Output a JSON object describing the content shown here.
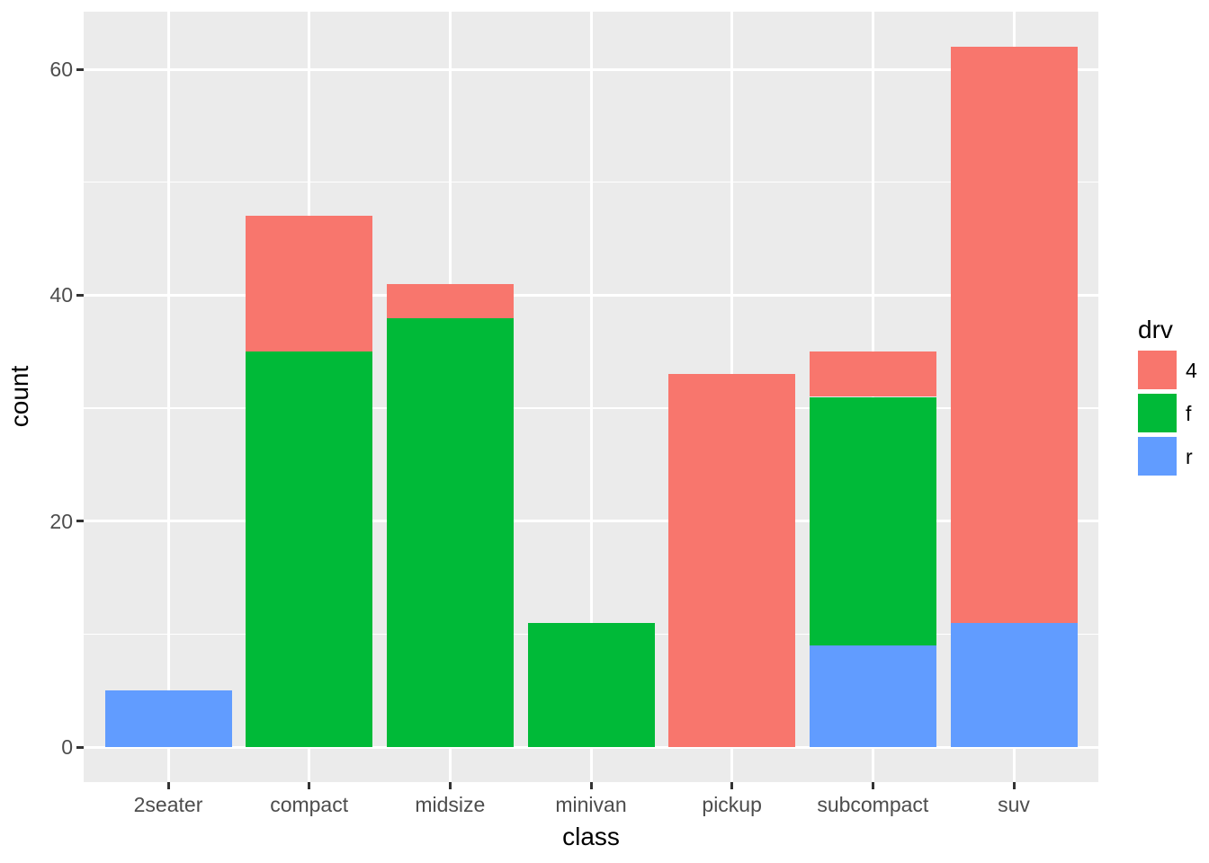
{
  "chart_data": {
    "type": "bar",
    "stacked": true,
    "title": "",
    "xlabel": "class",
    "ylabel": "count",
    "categories": [
      "2seater",
      "compact",
      "midsize",
      "minivan",
      "pickup",
      "subcompact",
      "suv"
    ],
    "series": [
      {
        "name": "4",
        "color": "#F8766D",
        "values": [
          0,
          12,
          3,
          0,
          33,
          4,
          51
        ]
      },
      {
        "name": "f",
        "color": "#00BA38",
        "values": [
          0,
          35,
          38,
          11,
          0,
          22,
          0
        ]
      },
      {
        "name": "r",
        "color": "#619CFF",
        "values": [
          5,
          0,
          0,
          0,
          0,
          9,
          11
        ]
      }
    ],
    "stack_order_bottom_to_top": [
      "r",
      "f",
      "4"
    ],
    "totals": [
      5,
      47,
      41,
      11,
      33,
      35,
      62
    ],
    "ylim": [
      -3.1,
      65.1
    ],
    "y_major_ticks": [
      0,
      20,
      40,
      60
    ],
    "y_minor_gridlines": [
      10,
      30,
      50
    ],
    "bar_relative_width": 0.9,
    "grid": true,
    "legend": {
      "title": "drv",
      "position": "right",
      "entries": [
        {
          "label": "4",
          "color": "#F8766D"
        },
        {
          "label": "f",
          "color": "#00BA38"
        },
        {
          "label": "r",
          "color": "#619CFF"
        }
      ]
    },
    "theme": {
      "panel_background": "#EBEBEB",
      "grid_color": "#FFFFFF",
      "plot_background": "#FFFFFF",
      "tick_label_color": "#4D4D4D",
      "axis_title_color": "#000000",
      "tick_mark_color": "#333333"
    }
  }
}
